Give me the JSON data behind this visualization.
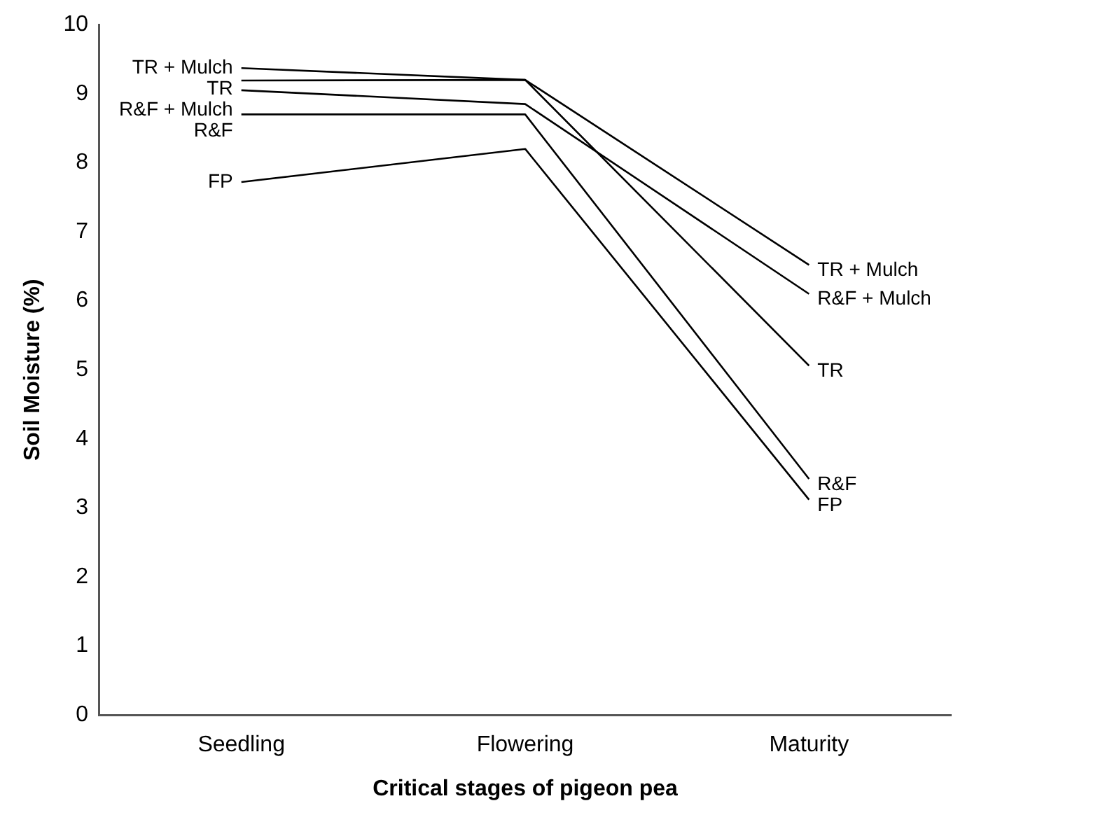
{
  "chart_data": {
    "type": "line",
    "xlabel": "Critical stages of pigeon pea",
    "ylabel": "Soil Moisture (%)",
    "categories": [
      "Seedling",
      "Flowering",
      "Maturity"
    ],
    "ylim": [
      0,
      10
    ],
    "yticks": [
      0,
      1,
      2,
      3,
      4,
      5,
      6,
      7,
      8,
      9,
      10
    ],
    "grid": false,
    "legend": false,
    "marker": "none",
    "line_style": "solid",
    "series": [
      {
        "name": "TR + Mulch",
        "color": "#000000",
        "values": [
          9.37,
          9.2,
          6.52
        ]
      },
      {
        "name": "TR",
        "color": "#000000",
        "values": [
          9.19,
          9.2,
          5.06
        ]
      },
      {
        "name": "R&F + Mulch",
        "color": "#000000",
        "values": [
          9.05,
          8.85,
          6.1
        ]
      },
      {
        "name": "R&F",
        "color": "#000000",
        "values": [
          8.7,
          8.7,
          3.42
        ]
      },
      {
        "name": "FP",
        "color": "#000000",
        "values": [
          7.72,
          8.2,
          3.12
        ]
      }
    ]
  }
}
